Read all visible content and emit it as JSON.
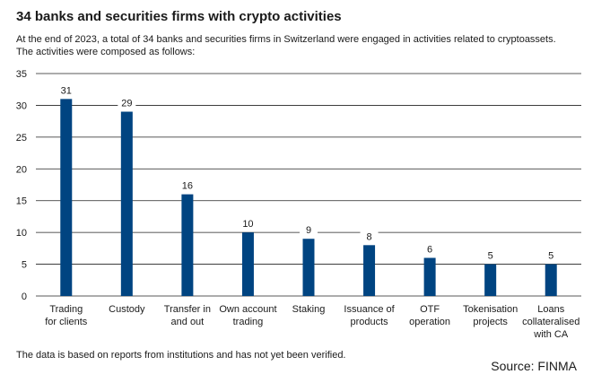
{
  "header": {
    "title": "34 banks and securities firms with crypto activities",
    "subtitle_lines": [
      "At the end of 2023, a total of 34 banks and securities firms in Switzerland were engaged in activities related to cryptoassets.",
      "The activities were composed as follows:"
    ]
  },
  "footer": {
    "note": "The data is based on reports from institutions and has not yet been verified.",
    "source": "Source: FINMA"
  },
  "colors": {
    "bar": "#004481",
    "grid": "#222222",
    "text": "#1a1a1a"
  },
  "chart_data": {
    "type": "bar",
    "categories": [
      [
        "Trading",
        "for clients"
      ],
      [
        "Custody"
      ],
      [
        "Transfer in",
        "and out"
      ],
      [
        "Own account",
        "trading"
      ],
      [
        "Staking"
      ],
      [
        "Issuance of",
        "products"
      ],
      [
        "OTF",
        "operation"
      ],
      [
        "Tokenisation",
        "projects"
      ],
      [
        "Loans",
        "collateralised",
        "with CA"
      ]
    ],
    "values": [
      31,
      29,
      16,
      10,
      9,
      8,
      6,
      5,
      5
    ],
    "ylim": [
      0,
      35
    ],
    "yticks": [
      0,
      5,
      10,
      15,
      20,
      25,
      30,
      35
    ],
    "grid": true,
    "data_labels": true
  }
}
